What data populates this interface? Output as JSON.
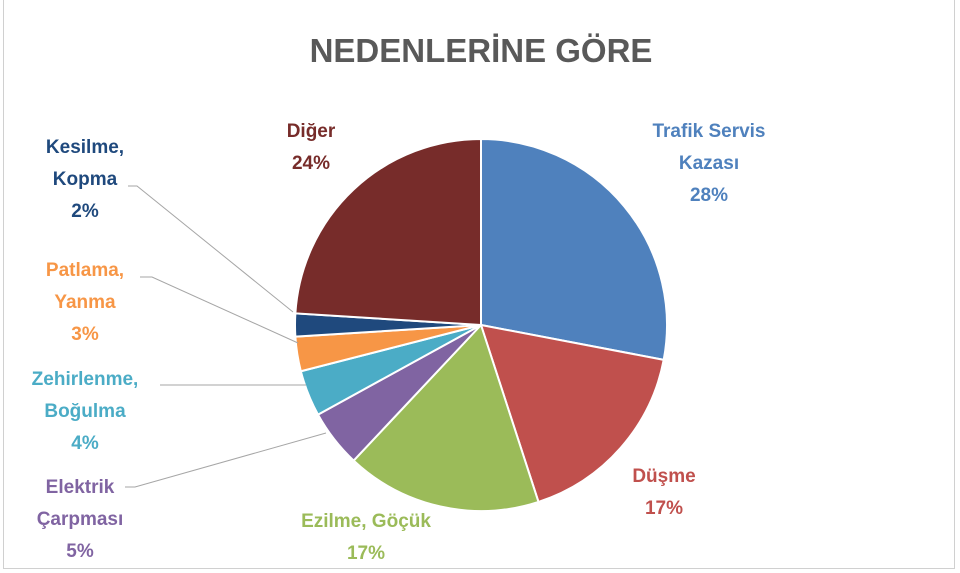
{
  "chart_data": {
    "type": "pie",
    "title": "NEDENLERİNE GÖRE",
    "start": "top",
    "direction": "clockwise",
    "slices": [
      {
        "label": [
          "Trafik Servis",
          "Kazası"
        ],
        "value": 28,
        "value_label": "28%",
        "color": "#4F81BD"
      },
      {
        "label": [
          "Düşme"
        ],
        "value": 17,
        "value_label": "17%",
        "color": "#C0504D"
      },
      {
        "label": [
          "Ezilme, Göçük"
        ],
        "value": 17,
        "value_label": "17%",
        "color": "#9BBB59"
      },
      {
        "label": [
          "Elektrik",
          "Çarpması"
        ],
        "value": 5,
        "value_label": "5%",
        "color": "#8064A2"
      },
      {
        "label": [
          "Zehirlenme,",
          "Boğulma"
        ],
        "value": 4,
        "value_label": "4%",
        "color": "#4BACC6"
      },
      {
        "label": [
          "Patlama,",
          "Yanma"
        ],
        "value": 3,
        "value_label": "3%",
        "color": "#F79646"
      },
      {
        "label": [
          "Kesilme,",
          "Kopma"
        ],
        "value": 2,
        "value_label": "2%",
        "color": "#1F497D"
      },
      {
        "label": [
          "Diğer"
        ],
        "value": 24,
        "value_label": "24%",
        "color": "#772C2A"
      }
    ]
  }
}
